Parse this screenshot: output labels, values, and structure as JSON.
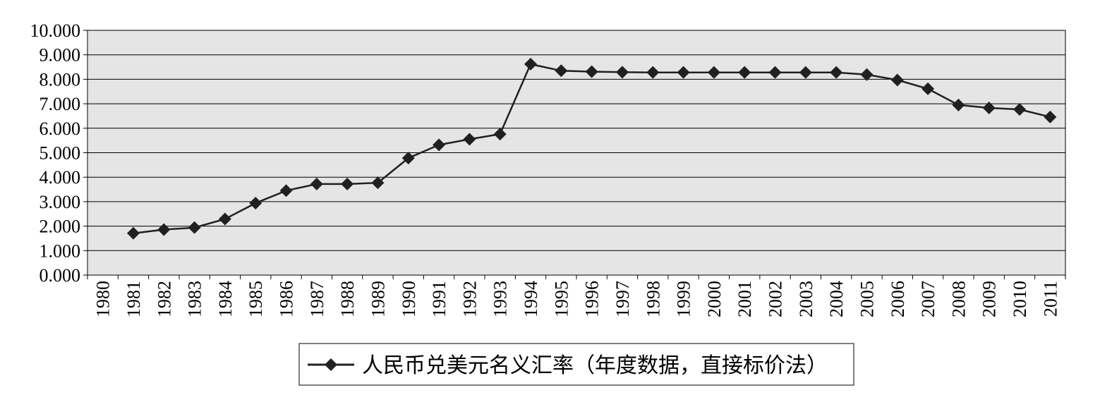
{
  "chart_data": {
    "type": "line",
    "title": "",
    "xlabel": "",
    "ylabel": "",
    "ylim": [
      0,
      10
    ],
    "yticks": [
      "0.000",
      "1.000",
      "2.000",
      "3.000",
      "4.000",
      "5.000",
      "6.000",
      "7.000",
      "8.000",
      "9.000",
      "10.000"
    ],
    "categories": [
      "1980",
      "1981",
      "1982",
      "1983",
      "1984",
      "1985",
      "1986",
      "1987",
      "1988",
      "1989",
      "1990",
      "1991",
      "1992",
      "1993",
      "1994",
      "1995",
      "1996",
      "1997",
      "1998",
      "1999",
      "2000",
      "2001",
      "2002",
      "2003",
      "2004",
      "2005",
      "2006",
      "2007",
      "2008",
      "2009",
      "2010",
      "2011"
    ],
    "grid": "horizontal",
    "legend_position": "bottom",
    "series": [
      {
        "name": "人民币兑美元名义汇率（年度数据，直接标价法）",
        "color": "#231f20",
        "marker": "diamond",
        "values": [
          null,
          1.71,
          1.86,
          1.94,
          2.29,
          2.94,
          3.45,
          3.72,
          3.72,
          3.77,
          4.78,
          5.32,
          5.55,
          5.76,
          8.62,
          8.35,
          8.31,
          8.29,
          8.28,
          8.28,
          8.28,
          8.28,
          8.28,
          8.28,
          8.28,
          8.19,
          7.97,
          7.61,
          6.95,
          6.83,
          6.77,
          6.46
        ]
      }
    ],
    "plot_background": "#e5e5e5"
  }
}
